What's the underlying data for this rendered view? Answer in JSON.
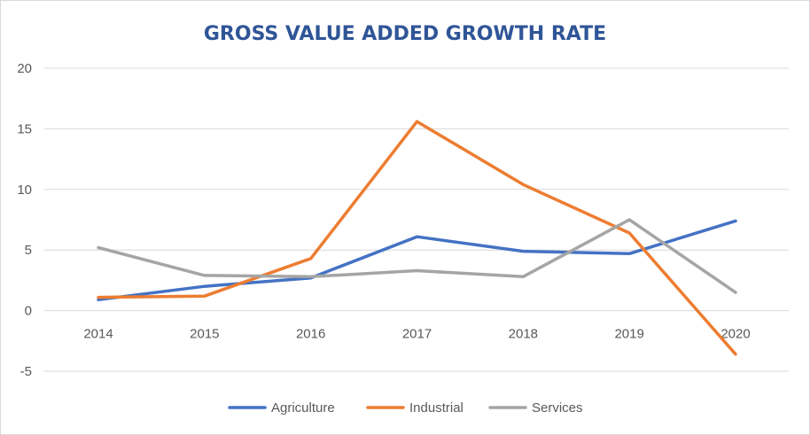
{
  "chart_data": {
    "type": "line",
    "title": "GROSS VALUE ADDED GROWTH RATE",
    "xlabel": "",
    "ylabel": "",
    "categories": [
      "2014",
      "2015",
      "2016",
      "2017",
      "2018",
      "2019",
      "2020"
    ],
    "ylim": [
      -5,
      20
    ],
    "yticks": [
      "-5",
      "0",
      "5",
      "10",
      "15",
      "20"
    ],
    "grid": true,
    "legend_position": "bottom",
    "series": [
      {
        "name": "Agriculture",
        "color": "#4472c4",
        "values": [
          0.9,
          2.0,
          2.7,
          6.1,
          4.9,
          4.7,
          7.4
        ]
      },
      {
        "name": "Industrial",
        "color": "#ed7d31",
        "values": [
          1.1,
          1.2,
          4.3,
          15.6,
          10.4,
          6.4,
          -3.6
        ]
      },
      {
        "name": "Services",
        "color": "#a5a5a5",
        "values": [
          5.2,
          2.9,
          2.8,
          3.3,
          2.8,
          7.5,
          1.5
        ]
      }
    ]
  }
}
